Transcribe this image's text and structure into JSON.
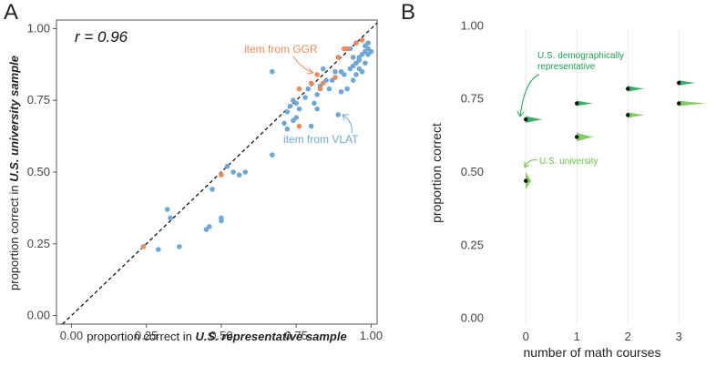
{
  "panels": {
    "a": {
      "letter": "A"
    },
    "b": {
      "letter": "B"
    }
  },
  "chart_data": [
    {
      "type": "scatter",
      "panel": "A",
      "xlabel_prefix": "proportion correct in ",
      "xlabel_emph": "U.S. representative sample",
      "ylabel_prefix": "proportion correct in ",
      "ylabel_emph": "U.S. university sample",
      "xlim": [
        -0.05,
        1.02
      ],
      "ylim": [
        -0.03,
        1.03
      ],
      "xticks": [
        0,
        0.25,
        0.5,
        0.75,
        1.0
      ],
      "xtick_labels": [
        "0.00",
        "0.25",
        "0.50",
        "0.75",
        "1.00"
      ],
      "yticks": [
        0,
        0.25,
        0.5,
        0.75,
        1.0
      ],
      "ytick_labels": [
        "0.00",
        "0.25",
        "0.50",
        "0.75",
        "1.00"
      ],
      "identity_line": true,
      "annotation_r": "r = 0.96",
      "colors": {
        "VLAT": "#6fa8d6",
        "GGR": "#ec8a5f"
      },
      "series": [
        {
          "name": "VLAT",
          "label": "item from VLAT",
          "color": "#6fa8d6",
          "points": [
            [
              0.29,
              0.23
            ],
            [
              0.32,
              0.37
            ],
            [
              0.33,
              0.34
            ],
            [
              0.36,
              0.24
            ],
            [
              0.45,
              0.3
            ],
            [
              0.46,
              0.31
            ],
            [
              0.47,
              0.44
            ],
            [
              0.5,
              0.34
            ],
            [
              0.5,
              0.33
            ],
            [
              0.52,
              0.52
            ],
            [
              0.54,
              0.5
            ],
            [
              0.56,
              0.49
            ],
            [
              0.58,
              0.5
            ],
            [
              0.67,
              0.56
            ],
            [
              0.67,
              0.85
            ],
            [
              0.71,
              0.67
            ],
            [
              0.72,
              0.71
            ],
            [
              0.72,
              0.65
            ],
            [
              0.73,
              0.73
            ],
            [
              0.74,
              0.75
            ],
            [
              0.74,
              0.68
            ],
            [
              0.75,
              0.69
            ],
            [
              0.75,
              0.74
            ],
            [
              0.76,
              0.72
            ],
            [
              0.78,
              0.76
            ],
            [
              0.79,
              0.79
            ],
            [
              0.8,
              0.66
            ],
            [
              0.81,
              0.74
            ],
            [
              0.82,
              0.72
            ],
            [
              0.82,
              0.77
            ],
            [
              0.83,
              0.8
            ],
            [
              0.84,
              0.86
            ],
            [
              0.85,
              0.82
            ],
            [
              0.86,
              0.79
            ],
            [
              0.87,
              0.82
            ],
            [
              0.88,
              0.85
            ],
            [
              0.89,
              0.7
            ],
            [
              0.9,
              0.78
            ],
            [
              0.9,
              0.85
            ],
            [
              0.91,
              0.84
            ],
            [
              0.92,
              0.79
            ],
            [
              0.93,
              0.86
            ],
            [
              0.94,
              0.82
            ],
            [
              0.94,
              0.87
            ],
            [
              0.95,
              0.84
            ],
            [
              0.95,
              0.88
            ],
            [
              0.96,
              0.86
            ],
            [
              0.96,
              0.89
            ],
            [
              0.97,
              0.85
            ],
            [
              0.97,
              0.91
            ],
            [
              0.98,
              0.88
            ],
            [
              0.98,
              0.92
            ],
            [
              0.98,
              0.94
            ],
            [
              0.99,
              0.91
            ],
            [
              0.99,
              0.93
            ],
            [
              0.99,
              0.95
            ],
            [
              1.0,
              0.92
            ],
            [
              0.96,
              0.9
            ],
            [
              0.93,
              0.93
            ],
            [
              0.94,
              0.9
            ]
          ]
        },
        {
          "name": "GGR",
          "label": "item from GGR",
          "color": "#ec8a5f",
          "points": [
            [
              0.24,
              0.24
            ],
            [
              0.5,
              0.49
            ],
            [
              0.76,
              0.66
            ],
            [
              0.76,
              0.79
            ],
            [
              0.8,
              0.81
            ],
            [
              0.82,
              0.84
            ],
            [
              0.83,
              0.79
            ],
            [
              0.84,
              0.81
            ],
            [
              0.88,
              0.83
            ],
            [
              0.89,
              0.9
            ],
            [
              0.91,
              0.93
            ],
            [
              0.92,
              0.93
            ],
            [
              0.95,
              0.95
            ],
            [
              0.97,
              0.96
            ]
          ]
        }
      ]
    },
    {
      "type": "dot-with-density",
      "panel": "B",
      "xlabel": "number of math courses",
      "ylabel": "proportion correct",
      "xlim": [
        -0.7,
        3.8
      ],
      "ylim": [
        -0.02,
        1.02
      ],
      "xticks": [
        0,
        1,
        2,
        3
      ],
      "xtick_labels": [
        "0",
        "1",
        "2",
        "3"
      ],
      "yticks": [
        0,
        0.25,
        0.5,
        0.75,
        1.0
      ],
      "ytick_labels": [
        "0.00",
        "0.25",
        "0.50",
        "0.75",
        "1.00"
      ],
      "series": [
        {
          "name": "U.S. demographically representative",
          "label_line1": "U.S. demographically",
          "label_line2": "representative",
          "color": "#1f9e54",
          "values": [
            [
              0,
              0.68
            ],
            [
              1,
              0.735
            ],
            [
              2,
              0.785
            ],
            [
              3,
              0.805
            ]
          ],
          "spread": [
            0.012,
            0.008,
            0.01,
            0.008
          ]
        },
        {
          "name": "U.S. university",
          "label": "U.S. university",
          "color": "#6cc24a",
          "values": [
            [
              0,
              0.47
            ],
            [
              1,
              0.62
            ],
            [
              2,
              0.695
            ],
            [
              3,
              0.735
            ]
          ],
          "spread": [
            0.03,
            0.015,
            0.01,
            0.008
          ]
        }
      ]
    }
  ]
}
